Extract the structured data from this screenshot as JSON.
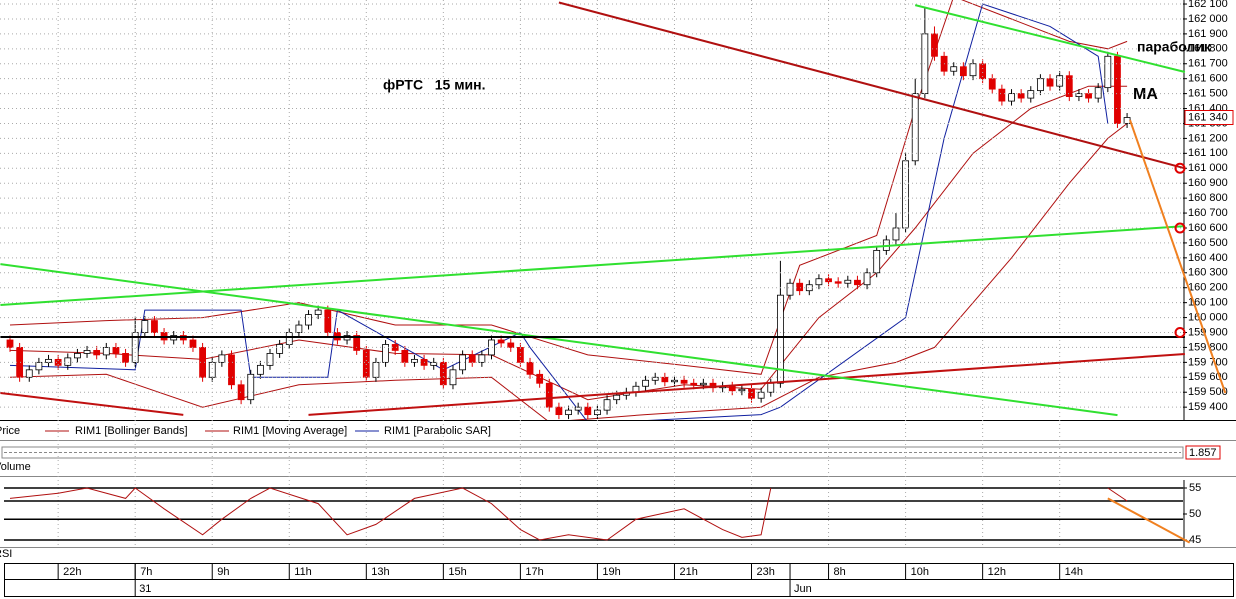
{
  "chart_data": {
    "type": "candlestick",
    "annotation": "фРТС   15 мин.",
    "notes": [
      "параболик",
      "MA"
    ],
    "price_label": "Price",
    "volume_label": "Volume",
    "volume_value": "1.857",
    "rsi_label": "RSI",
    "ylim": [
      159314,
      162127
    ],
    "yticks": [
      {
        "value": 159400,
        "label": "159 400"
      },
      {
        "value": 159500,
        "label": "159 500"
      },
      {
        "value": 159600,
        "label": "159 600"
      },
      {
        "value": 159700,
        "label": "159 700"
      },
      {
        "value": 159800,
        "label": "159 800"
      },
      {
        "value": 159900,
        "label": "159 900"
      },
      {
        "value": 160000,
        "label": "160 000"
      },
      {
        "value": 160100,
        "label": "160 100"
      },
      {
        "value": 160200,
        "label": "160 200"
      },
      {
        "value": 160300,
        "label": "160 300"
      },
      {
        "value": 160400,
        "label": "160 400"
      },
      {
        "value": 160500,
        "label": "160 500"
      },
      {
        "value": 160600,
        "label": "160 600"
      },
      {
        "value": 160700,
        "label": "160 700"
      },
      {
        "value": 160800,
        "label": "160 800"
      },
      {
        "value": 160900,
        "label": "160 900"
      },
      {
        "value": 161000,
        "label": "161 000"
      },
      {
        "value": 161100,
        "label": "161 100"
      },
      {
        "value": 161200,
        "label": "161 200"
      },
      {
        "value": 161300,
        "label": "161 300"
      },
      {
        "value": 161400,
        "label": "161 400"
      },
      {
        "value": 161500,
        "label": "161 500"
      },
      {
        "value": 161600,
        "label": "161 600"
      },
      {
        "value": 161700,
        "label": "161 700"
      },
      {
        "value": 161800,
        "label": "161 800"
      },
      {
        "value": 161900,
        "label": "161 900"
      },
      {
        "value": 162000,
        "label": "162 000"
      },
      {
        "value": 162100,
        "label": "162 100"
      }
    ],
    "grid": true,
    "current": {
      "value": 161340,
      "label": "161 340"
    },
    "markers": [
      161000,
      160600,
      159900
    ],
    "categories": [
      null,
      null,
      null,
      null,
      null,
      "22h",
      null,
      null,
      null,
      null,
      null,
      null,
      null,
      "7h",
      null,
      null,
      null,
      null,
      null,
      null,
      null,
      "9h",
      null,
      null,
      null,
      null,
      null,
      null,
      null,
      "11h",
      null,
      null,
      null,
      null,
      null,
      null,
      null,
      "13h",
      null,
      null,
      null,
      null,
      null,
      null,
      null,
      "15h",
      null,
      null,
      null,
      null,
      null,
      null,
      null,
      "17h",
      null,
      null,
      null,
      null,
      null,
      null,
      null,
      "19h",
      null,
      null,
      null,
      null,
      null,
      null,
      null,
      "21h",
      null,
      null,
      null,
      null,
      null,
      null,
      null,
      "23h",
      null,
      null,
      null,
      null,
      null,
      null,
      null,
      "8h",
      null,
      null,
      null,
      null,
      null,
      null,
      null,
      "10h",
      null,
      null,
      null,
      null,
      null,
      null,
      null,
      "12h",
      null,
      null,
      null,
      null,
      null,
      null,
      null,
      "14h",
      null,
      null,
      null,
      null,
      null,
      null,
      null
    ],
    "dates": [
      null,
      null,
      null,
      null,
      null,
      null,
      null,
      null,
      null,
      null,
      null,
      null,
      null,
      "31",
      null,
      null,
      null,
      null,
      null,
      null,
      null,
      null,
      null,
      null,
      null,
      null,
      null,
      null,
      null,
      null,
      null,
      null,
      null,
      null,
      null,
      null,
      null,
      null,
      null,
      null,
      null,
      null,
      null,
      null,
      null,
      null,
      null,
      null,
      null,
      null,
      null,
      null,
      null,
      null,
      null,
      null,
      null,
      null,
      null,
      null,
      null,
      null,
      null,
      null,
      null,
      null,
      null,
      null,
      null,
      null,
      null,
      null,
      null,
      null,
      null,
      null,
      null,
      null,
      null,
      null,
      null,
      "Jun",
      null,
      null,
      null,
      null,
      null,
      null,
      null,
      null,
      null,
      null,
      null,
      null,
      null,
      null,
      null,
      null,
      null,
      null,
      null,
      null,
      null,
      null,
      null,
      null,
      null,
      null,
      null,
      null,
      null,
      null,
      null,
      null,
      null,
      null,
      null
    ],
    "open": [
      159850,
      159800,
      159600,
      159650,
      159700,
      159720,
      159680,
      159730,
      159760,
      159780,
      159750,
      159800,
      159760,
      159700,
      159900,
      159980,
      159900,
      159850,
      159880,
      159850,
      159800,
      159600,
      159700,
      159750,
      159550,
      159450,
      159620,
      159680,
      159760,
      159820,
      159900,
      159950,
      160020,
      160050,
      159900,
      159850,
      159880,
      159780,
      159600,
      159700,
      159820,
      159780,
      159700,
      159720,
      159680,
      159700,
      159550,
      159650,
      159750,
      159700,
      159750,
      159850,
      159830,
      159800,
      159700,
      159620,
      159560,
      159400,
      159350,
      159380,
      159400,
      159350,
      159380,
      159450,
      159480,
      159500,
      159540,
      159580,
      159600,
      159570,
      159580,
      159560,
      159550,
      159560,
      159530,
      159540,
      159510,
      159520,
      159460,
      159500,
      159560,
      160150,
      160230,
      160180,
      160220,
      160260,
      160240,
      160230,
      160250,
      160220,
      160300,
      160450,
      160520,
      160600,
      161050,
      161500,
      161900,
      161750,
      161650,
      161680,
      161620,
      161700,
      161600,
      161530,
      161450,
      161500,
      161470,
      161520,
      161600,
      161550,
      161620,
      161480,
      161500,
      161470,
      161540,
      161750,
      161300
    ],
    "high": [
      159880,
      159830,
      159680,
      159730,
      159750,
      159750,
      159760,
      159790,
      159810,
      159810,
      159830,
      159830,
      159790,
      160000,
      160010,
      160010,
      159930,
      159910,
      159910,
      159880,
      159830,
      159730,
      159780,
      159780,
      159580,
      159650,
      159710,
      159790,
      159850,
      159930,
      159980,
      160050,
      160080,
      160080,
      159930,
      159910,
      159910,
      159810,
      159730,
      159850,
      159850,
      159810,
      159750,
      159750,
      159730,
      159730,
      159680,
      159780,
      159780,
      159780,
      159880,
      159880,
      159860,
      159830,
      159730,
      159650,
      159590,
      159430,
      159410,
      159430,
      159430,
      159410,
      159480,
      159510,
      159530,
      159570,
      159610,
      159630,
      159630,
      159610,
      159610,
      159590,
      159590,
      159590,
      159570,
      159570,
      159550,
      159550,
      159530,
      159590,
      160380,
      160260,
      160260,
      160250,
      160290,
      160290,
      160270,
      160280,
      160280,
      160330,
      160480,
      160550,
      160700,
      161100,
      161600,
      162080,
      161950,
      161780,
      161710,
      161710,
      161730,
      161730,
      161630,
      161560,
      161530,
      161530,
      161550,
      161630,
      161630,
      161650,
      161650,
      161530,
      161530,
      161570,
      161780,
      161780,
      161370
    ],
    "low": [
      159770,
      159570,
      159570,
      159620,
      159670,
      159650,
      159650,
      159700,
      159730,
      159720,
      159720,
      159730,
      159670,
      159670,
      159870,
      159870,
      159820,
      159820,
      159820,
      159770,
      159570,
      159570,
      159670,
      159520,
      159420,
      159420,
      159590,
      159650,
      159730,
      159790,
      159870,
      159920,
      159990,
      159870,
      159820,
      159820,
      159750,
      159570,
      159570,
      159670,
      159750,
      159670,
      159670,
      159650,
      159650,
      159520,
      159520,
      159620,
      159670,
      159670,
      159720,
      159800,
      159770,
      159670,
      159590,
      159530,
      159370,
      159320,
      159320,
      159350,
      159320,
      159320,
      159350,
      159420,
      159450,
      159470,
      159510,
      159550,
      159540,
      159540,
      159530,
      159520,
      159520,
      159500,
      159500,
      159480,
      159480,
      159430,
      159430,
      159470,
      159530,
      160120,
      160150,
      160150,
      160190,
      160210,
      160200,
      160200,
      160190,
      160190,
      160270,
      160420,
      160490,
      160570,
      161020,
      161470,
      161720,
      161620,
      161620,
      161590,
      161590,
      161570,
      161500,
      161420,
      161420,
      161440,
      161440,
      161490,
      161520,
      161520,
      161450,
      161450,
      161440,
      161440,
      161510,
      161270,
      161270
    ],
    "close": [
      159800,
      159600,
      159650,
      159700,
      159720,
      159680,
      159730,
      159760,
      159780,
      159750,
      159800,
      159760,
      159700,
      159900,
      159980,
      159900,
      159850,
      159880,
      159850,
      159800,
      159600,
      159700,
      159750,
      159550,
      159450,
      159620,
      159680,
      159760,
      159820,
      159900,
      159950,
      160020,
      160050,
      159900,
      159850,
      159880,
      159780,
      159600,
      159700,
      159820,
      159780,
      159700,
      159720,
      159680,
      159700,
      159550,
      159650,
      159750,
      159700,
      159750,
      159850,
      159830,
      159800,
      159700,
      159620,
      159560,
      159400,
      159350,
      159380,
      159400,
      159350,
      159380,
      159450,
      159480,
      159500,
      159540,
      159580,
      159600,
      159570,
      159580,
      159560,
      159550,
      159560,
      159530,
      159540,
      159510,
      159520,
      159460,
      159500,
      159560,
      160150,
      160230,
      160180,
      160220,
      160260,
      160240,
      160230,
      160250,
      160220,
      160300,
      160450,
      160520,
      160600,
      161050,
      161500,
      161900,
      161750,
      161650,
      161680,
      161620,
      161700,
      161600,
      161530,
      161450,
      161500,
      161470,
      161520,
      161600,
      161550,
      161620,
      161480,
      161500,
      161470,
      161540,
      161750,
      161300,
      161340
    ],
    "up_color": "#ffffff",
    "down_color": "#e00000",
    "series": [
      {
        "name": "RIM1 [Bollinger Bands]",
        "color": "#b01010",
        "lines": [
          {
            "x": [
              0,
              10,
              20,
              30,
              40,
              50,
              60,
              70,
              78,
              82,
              90,
              94,
              98,
              104,
              110,
              114,
              116
            ],
            "values": [
              159950,
              159980,
              160000,
              160100,
              159950,
              159950,
              159750,
              159680,
              159620,
              160350,
              160550,
              161400,
              162150,
              162000,
              161850,
              161800,
              161850
            ]
          },
          {
            "x": [
              0,
              10,
              20,
              30,
              40,
              50,
              56,
              66,
              78,
              84,
              92,
              96,
              104,
              110,
              114,
              116
            ],
            "values": [
              159600,
              159620,
              159400,
              159550,
              159580,
              159600,
              159300,
              159350,
              159400,
              159600,
              159700,
              159800,
              160400,
              160900,
              161200,
              161300
            ]
          }
        ]
      },
      {
        "name": "RIM1 [Moving Average]",
        "color": "#b01010",
        "lines": [
          {
            "x": [
              0,
              10,
              20,
              30,
              40,
              50,
              60,
              70,
              78,
              84,
              90,
              94,
              100,
              106,
              112,
              116
            ],
            "values": [
              159780,
              159760,
              159720,
              159850,
              159760,
              159750,
              159450,
              159550,
              159520,
              160000,
              160300,
              160600,
              161100,
              161400,
              161550,
              161550
            ]
          }
        ]
      },
      {
        "name": "RIM1 [Parabolic SAR]",
        "color": "#1020a0",
        "lines": [
          {
            "x": [
              0,
              13,
              14,
              24,
              25,
              33,
              34,
              45,
              53,
              54,
              60,
              63,
              78,
              80,
              93,
              97,
              101,
              108,
              113,
              114
            ],
            "values": [
              159680,
              159650,
              160050,
              160050,
              159600,
              159600,
              160050,
              159650,
              159900,
              159800,
              159300,
              159300,
              159350,
              159400,
              160000,
              161200,
              162100,
              161950,
              161750,
              161300
            ]
          }
        ]
      }
    ],
    "lines": [
      {
        "color": "#b01010",
        "x": [
          57,
          122
        ],
        "values": [
          162110,
          161000
        ]
      },
      {
        "color": "#c01010",
        "x": [
          -1,
          18
        ],
        "values": [
          159495,
          159348
        ]
      },
      {
        "color": "#c01010",
        "x": [
          31,
          122
        ],
        "values": [
          159348,
          159756
        ]
      },
      {
        "color": "#30e030",
        "x": [
          -1,
          122
        ],
        "values": [
          160084,
          160613
        ]
      },
      {
        "color": "#30e030",
        "x": [
          -1,
          115
        ],
        "values": [
          160358,
          159347
        ]
      },
      {
        "color": "#30e030",
        "x": [
          94,
          122
        ],
        "values": [
          162093,
          161645
        ]
      },
      {
        "color": "#000000",
        "x": [
          -1,
          122
        ],
        "values": [
          159870,
          159870
        ]
      },
      {
        "color": "#f08020",
        "x": [
          116.3,
          126.2
        ],
        "values": [
          161323,
          159495
        ]
      }
    ],
    "rsi": {
      "ylim": [
        44,
        56
      ],
      "yticks": [
        45,
        50,
        55
      ],
      "levels": [
        55,
        52.5,
        49,
        45
      ],
      "color": "#b01010",
      "x": [
        0,
        5,
        8,
        12,
        13,
        16,
        20,
        22,
        25,
        27,
        32,
        35,
        38,
        42,
        47,
        50,
        53,
        55,
        58,
        62,
        65,
        70,
        74,
        76,
        78,
        79,
        80,
        114,
        116
      ],
      "values": [
        53,
        54,
        55,
        53,
        55,
        51,
        46,
        49,
        53,
        55,
        52,
        46,
        48,
        53,
        55,
        52,
        47,
        45,
        46,
        45,
        49,
        51,
        47,
        45.5,
        46,
        55,
        null,
        55,
        52.5
      ],
      "lines": [
        {
          "color": "#f08020",
          "x": [
            114,
            122.5
          ],
          "values": [
            53,
            44.5
          ]
        }
      ]
    }
  }
}
